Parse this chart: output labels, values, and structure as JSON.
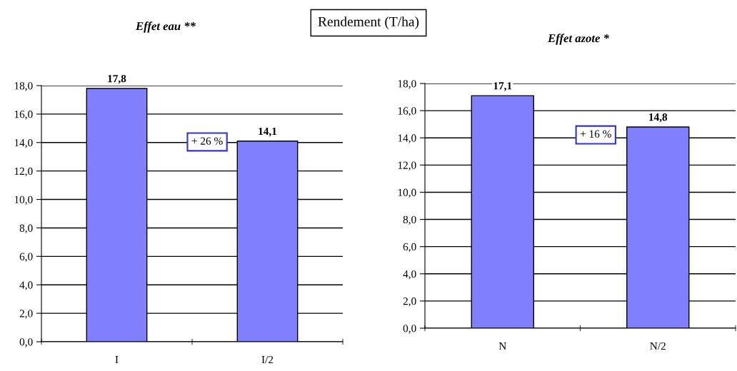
{
  "chart_data": [
    {
      "type": "bar",
      "title": "Effet eau **",
      "categories": [
        "I",
        "I/2"
      ],
      "values": [
        17.8,
        14.1
      ],
      "color": "#8080ff",
      "value_labels": [
        "17,8",
        "14,1"
      ],
      "ylim": [
        0,
        18
      ],
      "yticks": [
        {
          "value": 0,
          "label": "0,0"
        },
        {
          "value": 2,
          "label": "2,0"
        },
        {
          "value": 4,
          "label": "4,0"
        },
        {
          "value": 6,
          "label": "6,0"
        },
        {
          "value": 8,
          "label": "8,0"
        },
        {
          "value": 10,
          "label": "10,0"
        },
        {
          "value": 12,
          "label": "12,0"
        },
        {
          "value": 14,
          "label": "14,0"
        },
        {
          "value": 16,
          "label": "16,0"
        },
        {
          "value": 18,
          "label": "18,0"
        }
      ],
      "grid": "y",
      "annotations": [
        "+ 26 %",
        "Rendement (T/ha)"
      ]
    },
    {
      "type": "bar",
      "title": "Effet azote *",
      "categories": [
        "N",
        "N/2"
      ],
      "values": [
        17.1,
        14.8
      ],
      "color": "#8080ff",
      "value_labels": [
        "17,1",
        "14,8"
      ],
      "ylim": [
        0,
        18
      ],
      "yticks": [
        {
          "value": 0,
          "label": "0,0"
        },
        {
          "value": 2,
          "label": "2,0"
        },
        {
          "value": 4,
          "label": "4,0"
        },
        {
          "value": 6,
          "label": "6,0"
        },
        {
          "value": 8,
          "label": "8,0"
        },
        {
          "value": 10,
          "label": "10,0"
        },
        {
          "value": 12,
          "label": "12,0"
        },
        {
          "value": 14,
          "label": "14,0"
        },
        {
          "value": 16,
          "label": "16,0"
        },
        {
          "value": 18,
          "label": "18,0"
        }
      ],
      "grid": "y",
      "annotations": [
        "+ 16 %"
      ]
    }
  ]
}
